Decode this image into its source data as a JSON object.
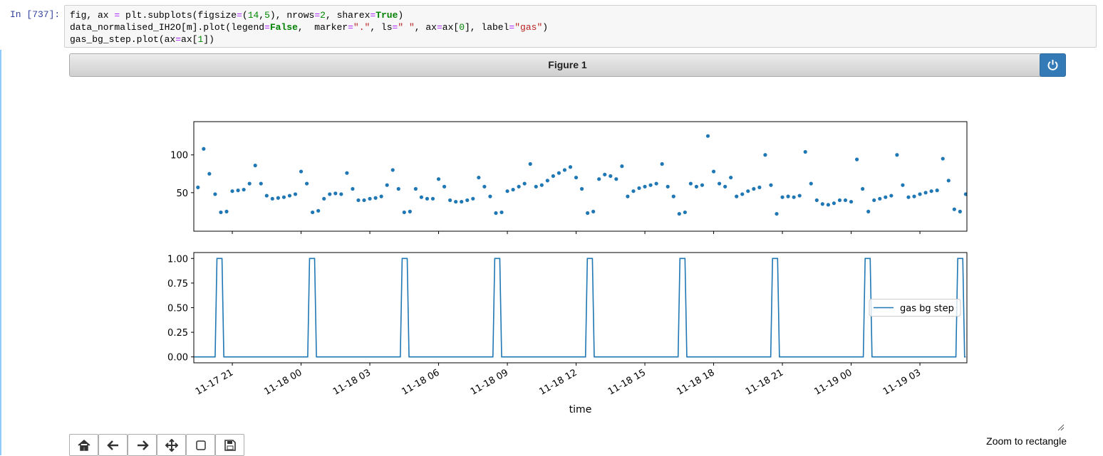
{
  "notebook": {
    "prompt": "In [737]:",
    "code": [
      [
        "fig, ax ",
        "=",
        " plt.subplots(figsize",
        "=",
        "(",
        "14",
        ",",
        "5",
        "), nrows",
        "=",
        "2",
        ", sharex",
        "=",
        "True",
        ")"
      ],
      [
        "data_normalised_IH2O[m].plot(legend",
        "=",
        "False",
        ",  marker",
        "=",
        "\".\"",
        ", ls",
        "=",
        "\" \"",
        ", ax",
        "=",
        "ax[",
        "0",
        "], label",
        "=",
        "\"gas\"",
        ")"
      ],
      [
        "gas_bg_step.plot(ax",
        "=",
        "ax[",
        "1",
        "])"
      ]
    ]
  },
  "figure": {
    "title": "Figure 1",
    "status": "Zoom to rectangle"
  },
  "chart_data": [
    {
      "type": "scatter",
      "color": "#1f77b4",
      "x": [
        19.5,
        19.75,
        20,
        20.25,
        20.5,
        20.75,
        21,
        21.25,
        21.5,
        21.75,
        22,
        22.25,
        22.5,
        22.75,
        23,
        23.25,
        23.5,
        23.75,
        24,
        24.25,
        24.5,
        24.75,
        25,
        25.25,
        25.5,
        25.75,
        26,
        26.25,
        26.5,
        26.75,
        27,
        27.25,
        27.5,
        27.75,
        28,
        28.25,
        28.5,
        28.75,
        29,
        29.25,
        29.5,
        29.75,
        30,
        30.25,
        30.5,
        30.75,
        31,
        31.25,
        31.5,
        31.75,
        32,
        32.25,
        32.5,
        32.75,
        33,
        33.25,
        33.5,
        33.75,
        34,
        34.25,
        34.5,
        34.75,
        35,
        35.25,
        35.5,
        35.75,
        36,
        36.25,
        36.5,
        36.75,
        37,
        37.25,
        37.5,
        37.75,
        38,
        38.25,
        38.5,
        38.75,
        39,
        39.25,
        39.5,
        39.75,
        40,
        40.25,
        40.5,
        40.75,
        41,
        41.25,
        41.5,
        41.75,
        42,
        42.25,
        42.5,
        42.75,
        43,
        43.25,
        43.5,
        43.75,
        44,
        44.25,
        44.5,
        44.75,
        45,
        45.25,
        45.5,
        45.75,
        46,
        46.25,
        46.5,
        46.75,
        47,
        47.25,
        47.5,
        47.75,
        48,
        48.25,
        48.5,
        48.75,
        49,
        49.25,
        49.5,
        49.75,
        50,
        50.25,
        50.5,
        50.75,
        51,
        51.25,
        51.5,
        51.75,
        52,
        52.25,
        52.5,
        52.75,
        53
      ],
      "values": [
        57,
        108,
        75,
        48,
        24,
        25,
        52,
        53,
        54,
        62,
        86,
        62,
        46,
        42,
        43,
        44,
        46,
        48,
        78,
        62,
        24,
        26,
        42,
        48,
        49,
        48,
        76,
        55,
        40,
        40,
        42,
        43,
        45,
        60,
        80,
        55,
        24,
        25,
        55,
        44,
        42,
        42,
        68,
        58,
        40,
        38,
        38,
        40,
        42,
        70,
        58,
        45,
        23,
        24,
        52,
        54,
        58,
        62,
        88,
        58,
        60,
        66,
        72,
        76,
        80,
        84,
        70,
        55,
        23,
        25,
        68,
        74,
        72,
        68,
        85,
        45,
        52,
        56,
        58,
        60,
        62,
        88,
        58,
        45,
        22,
        24,
        62,
        58,
        60,
        125,
        78,
        62,
        58,
        70,
        45,
        48,
        52,
        55,
        57,
        100,
        60,
        22,
        44,
        45,
        44,
        46,
        104,
        62,
        40,
        35,
        34,
        36,
        40,
        40,
        38,
        94,
        55,
        25,
        40,
        42,
        44,
        46,
        100,
        60,
        44,
        45,
        48,
        50,
        52,
        53,
        95,
        66,
        28,
        25,
        48
      ],
      "xlim": [
        19.32,
        53.05
      ],
      "ylim": [
        -1,
        144
      ],
      "yticks": [
        50,
        100
      ],
      "xticks": [
        21,
        24,
        27,
        30,
        33,
        36,
        39,
        42,
        45,
        48,
        51
      ]
    },
    {
      "type": "line",
      "x": [
        19.3,
        20.25,
        20.33,
        20.55,
        20.63,
        24.29,
        24.37,
        24.59,
        24.67,
        28.33,
        28.41,
        28.63,
        28.71,
        32.37,
        32.45,
        32.67,
        32.75,
        36.41,
        36.49,
        36.71,
        36.79,
        40.45,
        40.53,
        40.75,
        40.83,
        44.49,
        44.57,
        44.79,
        44.87,
        48.53,
        48.61,
        48.83,
        48.91,
        52.57,
        52.65,
        52.87,
        52.95,
        53.0
      ],
      "series": [
        {
          "name": "gas bg step",
          "color": "#1f77b4",
          "values": [
            0,
            0,
            1,
            1,
            0,
            0,
            1,
            1,
            0,
            0,
            1,
            1,
            0,
            0,
            1,
            1,
            0,
            0,
            1,
            1,
            0,
            0,
            1,
            1,
            0,
            0,
            1,
            1,
            0,
            0,
            1,
            1,
            0,
            0,
            1,
            1,
            0,
            0
          ]
        }
      ],
      "xlim": [
        19.32,
        53.05
      ],
      "ylim": [
        -0.06,
        1.06
      ],
      "yticks": [
        {
          "value": 0,
          "label": "0.00"
        },
        {
          "value": 0.25,
          "label": "0.25"
        },
        {
          "value": 0.5,
          "label": "0.50"
        },
        {
          "value": 0.75,
          "label": "0.75"
        },
        {
          "value": 1,
          "label": "1.00"
        }
      ],
      "xticks": [
        {
          "value": 21,
          "label": "11-17 21"
        },
        {
          "value": 24,
          "label": "11-18 00"
        },
        {
          "value": 27,
          "label": "11-18 03"
        },
        {
          "value": 30,
          "label": "11-18 06"
        },
        {
          "value": 33,
          "label": "11-18 09"
        },
        {
          "value": 36,
          "label": "11-18 12"
        },
        {
          "value": 39,
          "label": "11-18 15"
        },
        {
          "value": 42,
          "label": "11-18 18"
        },
        {
          "value": 45,
          "label": "11-18 21"
        },
        {
          "value": 48,
          "label": "11-19 00"
        },
        {
          "value": 51,
          "label": "11-19 03"
        }
      ],
      "xlabel": "time",
      "legend": "center right"
    }
  ]
}
